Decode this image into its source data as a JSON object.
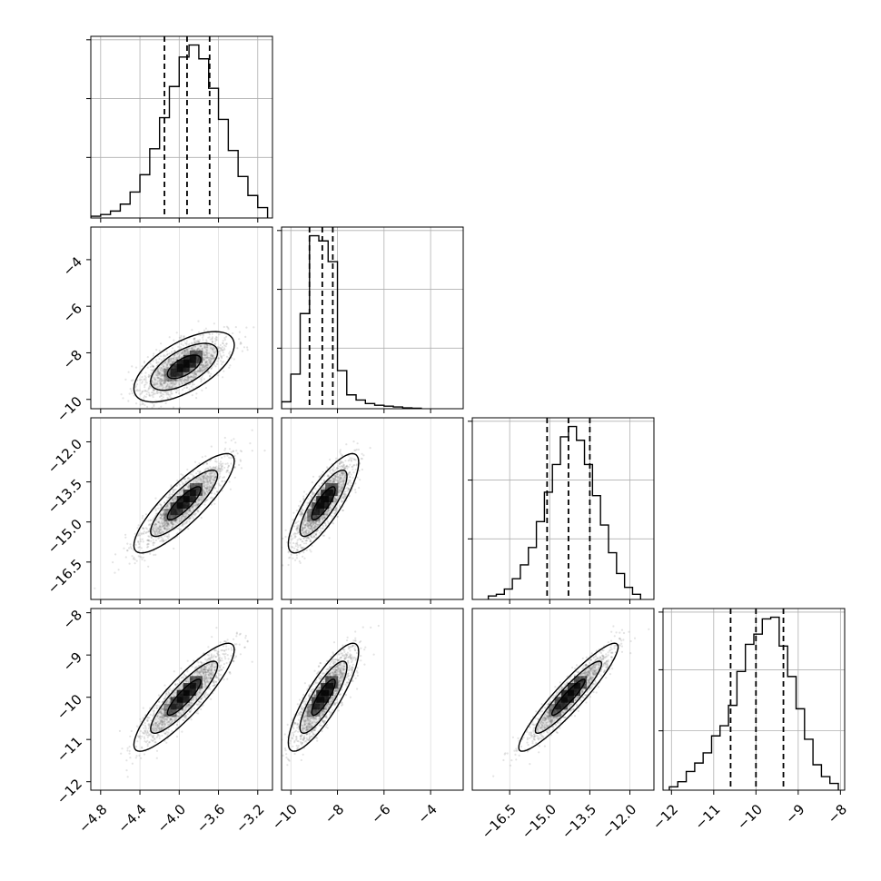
{
  "chart_data": {
    "type": "corner",
    "grid": true,
    "parameters": [
      {
        "xlim": [
          -4.9,
          -3.05
        ],
        "xticks": [
          -4.8,
          -4.4,
          -4.0,
          -3.6,
          -3.2
        ],
        "xticklabels": [
          "−4.8",
          "−4.4",
          "−4.0",
          "−3.6",
          "−3.2"
        ],
        "yticks": [],
        "yticklabels": []
      },
      {
        "xlim": [
          -10.4,
          -2.6
        ],
        "xticks": [
          -10,
          -8,
          -6,
          -4
        ],
        "xticklabels": [
          "−10",
          "−8",
          "−6",
          "−4"
        ],
        "yticks": [
          -10,
          -8,
          -6,
          -4
        ],
        "yticklabels": [
          "−10",
          "−8",
          "−6",
          "−4"
        ]
      },
      {
        "xlim": [
          -17.9,
          -11.1
        ],
        "xticks": [
          -16.5,
          -15.0,
          -13.5,
          -12.0
        ],
        "xticklabels": [
          "−16.5",
          "−15.0",
          "−13.5",
          "−12.0"
        ],
        "yticks": [
          -16.5,
          -15.0,
          -13.5,
          -12.0
        ],
        "yticklabels": [
          "−16.5",
          "−15.0",
          "−13.5",
          "−12.0"
        ]
      },
      {
        "xlim": [
          -12.2,
          -7.9
        ],
        "xticks": [
          -12,
          -11,
          -10,
          -9,
          -8
        ],
        "xticklabels": [
          "−12",
          "−11",
          "−10",
          "−9",
          "−8"
        ],
        "yticks": [
          -12,
          -11,
          -10,
          -9,
          -8
        ],
        "yticklabels": [
          "−12",
          "−11",
          "−10",
          "−9",
          "−8"
        ]
      }
    ],
    "histograms": [
      {
        "parameter": 0,
        "quantiles": [
          -4.15,
          -3.92,
          -3.69
        ],
        "edges": [
          -4.9,
          -4.8,
          -4.7,
          -4.6,
          -4.5,
          -4.4,
          -4.3,
          -4.2,
          -4.1,
          -4.0,
          -3.9,
          -3.8,
          -3.7,
          -3.6,
          -3.5,
          -3.4,
          -3.3,
          -3.2,
          -3.1
        ],
        "counts": [
          1,
          2,
          4,
          8,
          15,
          25,
          40,
          58,
          76,
          93,
          100,
          92,
          75,
          57,
          39,
          24,
          13,
          6
        ]
      },
      {
        "parameter": 1,
        "quantiles": [
          -9.2,
          -8.65,
          -8.2
        ],
        "edges": [
          -10.4,
          -10.0,
          -9.6,
          -9.2,
          -8.8,
          -8.4,
          -8.0,
          -7.6,
          -7.2,
          -6.8,
          -6.4,
          -6.0,
          -5.6,
          -5.2,
          -4.8,
          -4.4
        ],
        "counts": [
          4,
          20,
          55,
          100,
          97,
          85,
          22,
          8,
          5,
          3,
          2,
          1.5,
          1,
          0.5,
          0.3
        ]
      },
      {
        "parameter": 2,
        "quantiles": [
          -15.1,
          -14.3,
          -13.5
        ],
        "edges": [
          -17.3,
          -17.0,
          -16.7,
          -16.4,
          -16.1,
          -15.8,
          -15.5,
          -15.2,
          -14.9,
          -14.6,
          -14.3,
          -14.0,
          -13.7,
          -13.4,
          -13.1,
          -12.8,
          -12.5,
          -12.2,
          -11.9,
          -11.6
        ],
        "counts": [
          2,
          3,
          6,
          12,
          20,
          30,
          45,
          62,
          78,
          94,
          100,
          92,
          78,
          60,
          43,
          27,
          15,
          7,
          3
        ]
      },
      {
        "parameter": 3,
        "quantiles": [
          -10.6,
          -10.0,
          -9.35
        ],
        "edges": [
          -12.05,
          -11.85,
          -11.65,
          -11.45,
          -11.25,
          -11.05,
          -10.85,
          -10.65,
          -10.45,
          -10.25,
          -10.05,
          -9.85,
          -9.65,
          -9.45,
          -9.25,
          -9.05,
          -8.85,
          -8.65,
          -8.45,
          -8.25,
          -8.05
        ],
        "counts": [
          2,
          5,
          11,
          16,
          22,
          32,
          38,
          50,
          70,
          86,
          92,
          101,
          102,
          85,
          67,
          48,
          30,
          15,
          8,
          4
        ]
      }
    ],
    "pairs": [
      {
        "x": 0,
        "y": 1,
        "mean": [
          -3.95,
          -8.6
        ],
        "sd": [
          0.22,
          0.65
        ],
        "rho": 0.62
      },
      {
        "x": 0,
        "y": 2,
        "mean": [
          -3.95,
          -14.3
        ],
        "sd": [
          0.22,
          0.8
        ],
        "rho": 0.85
      },
      {
        "x": 0,
        "y": 3,
        "mean": [
          -3.95,
          -10.0
        ],
        "sd": [
          0.22,
          0.55
        ],
        "rho": 0.88
      },
      {
        "x": 1,
        "y": 2,
        "mean": [
          -8.6,
          -14.3
        ],
        "sd": [
          0.65,
          0.8
        ],
        "rho": 0.82
      },
      {
        "x": 1,
        "y": 3,
        "mean": [
          -8.6,
          -10.0
        ],
        "sd": [
          0.65,
          0.55
        ],
        "rho": 0.84
      },
      {
        "x": 2,
        "y": 3,
        "mean": [
          -14.3,
          -10.0
        ],
        "sd": [
          0.8,
          0.55
        ],
        "rho": 0.93
      }
    ],
    "contour_levels_sigma": [
      0.5,
      1.0,
      1.5
    ],
    "quantile_line_style": "dashed",
    "colors": {
      "line": "#000000",
      "grid": "#b0b0b0",
      "points": "#7f7f7f",
      "density": "#000000"
    }
  }
}
